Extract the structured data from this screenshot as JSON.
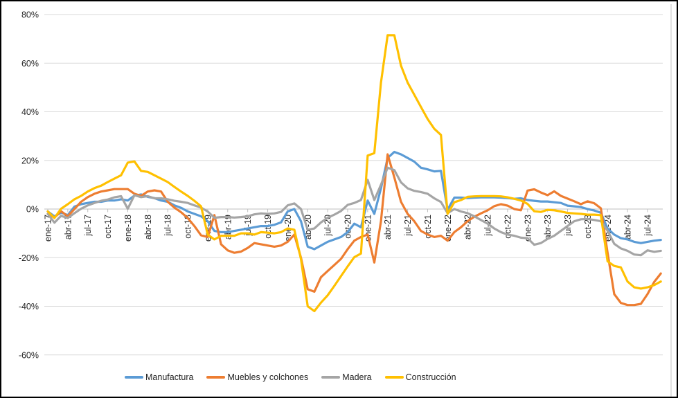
{
  "chart_data": {
    "type": "line",
    "title": "",
    "xlabel": "",
    "ylabel": "",
    "y_tick_labels": [
      "80%",
      "60%",
      "40%",
      "20%",
      "0%",
      "-20%",
      "-40%",
      "-60%"
    ],
    "y_ticks": [
      80,
      60,
      40,
      20,
      0,
      -20,
      -40,
      -60
    ],
    "ylim": [
      -60,
      80
    ],
    "grid": "horizontal",
    "legend_position": "bottom",
    "x_tick_labels": [
      "ene-17",
      "abr-17",
      "jul-17",
      "oct-17",
      "ene-18",
      "abr-18",
      "jul-18",
      "oct-18",
      "ene-19",
      "abr-19",
      "jul-19",
      "oct-19",
      "ene-20",
      "abr-20",
      "jul-20",
      "oct-20",
      "ene-21",
      "abr-21",
      "jul-21",
      "oct-21",
      "ene-22",
      "abr-22",
      "jul-22",
      "oct-22",
      "ene-23",
      "abr-23",
      "jul-23",
      "oct-23",
      "ene-24",
      "abr-24",
      "jul-24"
    ],
    "x": [
      "ene-17",
      "feb-17",
      "mar-17",
      "abr-17",
      "may-17",
      "jun-17",
      "jul-17",
      "ago-17",
      "sep-17",
      "oct-17",
      "nov-17",
      "dic-17",
      "ene-18",
      "feb-18",
      "mar-18",
      "abr-18",
      "may-18",
      "jun-18",
      "jul-18",
      "ago-18",
      "sep-18",
      "oct-18",
      "nov-18",
      "dic-18",
      "ene-19",
      "feb-19",
      "mar-19",
      "abr-19",
      "may-19",
      "jun-19",
      "jul-19",
      "ago-19",
      "sep-19",
      "oct-19",
      "nov-19",
      "dic-19",
      "ene-20",
      "feb-20",
      "mar-20",
      "abr-20",
      "may-20",
      "jun-20",
      "jul-20",
      "ago-20",
      "sep-20",
      "oct-20",
      "nov-20",
      "dic-20",
      "ene-21",
      "feb-21",
      "mar-21",
      "abr-21",
      "may-21",
      "jun-21",
      "jul-21",
      "ago-21",
      "sep-21",
      "oct-21",
      "nov-21",
      "dic-21",
      "ene-22",
      "feb-22",
      "mar-22",
      "abr-22",
      "may-22",
      "jun-22",
      "jul-22",
      "ago-22",
      "sep-22",
      "oct-22",
      "nov-22",
      "dic-22",
      "ene-23",
      "feb-23",
      "mar-23",
      "abr-23",
      "may-23",
      "jun-23",
      "jul-23",
      "ago-23",
      "sep-23",
      "oct-23",
      "nov-23",
      "dic-23",
      "ene-24",
      "feb-24",
      "mar-24",
      "abr-24",
      "may-24",
      "jun-24",
      "jul-24",
      "ago-24",
      "sep-24"
    ],
    "series": [
      {
        "name": "Manufactura",
        "color": "#5B9BD5",
        "values": [
          -1,
          -3,
          -1.5,
          -2.5,
          1,
          2,
          2.5,
          3,
          3,
          3.5,
          3.5,
          4,
          3.5,
          5.5,
          6,
          5,
          4.5,
          3.5,
          3,
          1.5,
          0.5,
          -1,
          -2,
          -3,
          -5,
          -9,
          -9.5,
          -9.5,
          -9,
          -8.5,
          -8,
          -7.5,
          -7,
          -7,
          -6.5,
          -5.5,
          -1,
          0,
          -5,
          -15.5,
          -16.5,
          -15,
          -13.5,
          -12.5,
          -11.5,
          -9.5,
          -6,
          -7.5,
          3.5,
          -2,
          8.5,
          21,
          23.5,
          22.5,
          21,
          19.5,
          17,
          16.3,
          15.5,
          15.7,
          -0.3,
          4.7,
          4.7,
          4.5,
          4.7,
          4.8,
          4.8,
          4.8,
          4.7,
          4.5,
          4.2,
          4.4,
          3.7,
          3.4,
          3.1,
          3.1,
          2.8,
          2.5,
          1.4,
          1.1,
          0.8,
          0,
          -0.6,
          -1.5,
          -8,
          -10.5,
          -12,
          -12.5,
          -13.5,
          -14,
          -13.5,
          -13,
          -12.7
        ]
      },
      {
        "name": "Muebles y colchones",
        "color": "#ED7D31",
        "values": [
          -2,
          -3.5,
          -0.9,
          -3,
          0,
          3,
          4.9,
          6.3,
          7.2,
          7.7,
          8.2,
          8.2,
          8.2,
          6.3,
          5.4,
          7.2,
          7.7,
          7.2,
          3,
          0.6,
          -1.3,
          -3.7,
          -7,
          -10.8,
          -11.5,
          -2.5,
          -14.5,
          -17,
          -18,
          -17.5,
          -16,
          -14,
          -14.5,
          -15,
          -15.5,
          -15,
          -13.5,
          -10.5,
          -20,
          -33,
          -34,
          -28,
          -25.5,
          -23,
          -20.5,
          -16.5,
          -13,
          -11.5,
          -10.5,
          -22,
          -5,
          22.5,
          13,
          3,
          -2,
          -5,
          -9,
          -10.5,
          -11.5,
          -11,
          -13,
          -9.5,
          -7.5,
          -5,
          -3.2,
          -1.8,
          -0.5,
          1.2,
          2,
          1.4,
          0,
          -0.5,
          7.6,
          8.1,
          6.8,
          5.7,
          7.3,
          5.4,
          4.3,
          3.2,
          2,
          3.2,
          2.4,
          0.3,
          -18,
          -35,
          -38.6,
          -39.5,
          -39.5,
          -39,
          -35,
          -30,
          -26.5
        ]
      },
      {
        "name": "Madera",
        "color": "#A5A5A5",
        "values": [
          -2,
          -5.6,
          -2.8,
          -3.7,
          -1.7,
          0.1,
          1.5,
          2.5,
          3.4,
          3.9,
          4.8,
          5.3,
          0.1,
          5.7,
          4.9,
          5.3,
          4.4,
          4.4,
          4,
          3.4,
          3,
          2.5,
          1.5,
          0.6,
          -1,
          -3.6,
          -3.3,
          -3.3,
          -3.5,
          -3.3,
          -3,
          -2.2,
          -1.8,
          -2,
          -1.8,
          -1.2,
          1.5,
          2.3,
          0,
          -8.5,
          -8,
          -5.5,
          -3.6,
          -2.3,
          -0.8,
          1.7,
          2.5,
          3.7,
          12,
          3.7,
          10,
          17,
          16,
          11,
          8.5,
          7.5,
          7,
          6.3,
          4.4,
          2.9,
          -1.7,
          0,
          -1,
          -1.7,
          -3,
          -4.5,
          -6,
          -8,
          -9.5,
          -10.5,
          -11,
          -11.8,
          -12,
          -14.7,
          -14,
          -12.3,
          -11,
          -9,
          -7,
          -5,
          -4.2,
          -4.1,
          -4.5,
          -5,
          -8.9,
          -14.3,
          -16.2,
          -17.2,
          -18.7,
          -19,
          -17,
          -17.6,
          -17.2
        ]
      },
      {
        "name": "Construcción",
        "color": "#FFC000",
        "values": [
          -1,
          -3.7,
          0.1,
          2,
          4,
          5.4,
          7.2,
          8.6,
          9.6,
          11.1,
          12.5,
          13.9,
          19.1,
          19.6,
          15.7,
          15.3,
          13.9,
          12.5,
          11.1,
          9.1,
          7.2,
          5.4,
          3.4,
          1.1,
          -10.5,
          -12.5,
          -11,
          -11,
          -11,
          -10,
          -10,
          -10.5,
          -9.5,
          -9.7,
          -10,
          -9.5,
          -8,
          -8.5,
          -20.6,
          -40,
          -42,
          -38.5,
          -35.5,
          -31.6,
          -27.6,
          -23.6,
          -19.8,
          -18.3,
          22,
          23,
          52,
          71.5,
          71.5,
          59,
          52,
          47,
          42,
          37,
          33,
          30.5,
          -2,
          2.8,
          3.7,
          5,
          5.2,
          5.3,
          5.3,
          5.3,
          5.2,
          4.8,
          4.2,
          3.5,
          2.1,
          -0.9,
          -1.2,
          -0.3,
          -0.5,
          -1,
          -1.6,
          -1.8,
          -2,
          -2.3,
          -2.3,
          -2.5,
          -21.5,
          -23.4,
          -24,
          -29.8,
          -32.2,
          -32.7,
          -32.2,
          -31.3,
          -29.8
        ]
      }
    ]
  },
  "style": {
    "gridline_color": "#D9D9D9",
    "axis_color": "#BFBFBF",
    "text_color": "#262626",
    "background": "#FFFFFF",
    "border_color": "#000000"
  }
}
